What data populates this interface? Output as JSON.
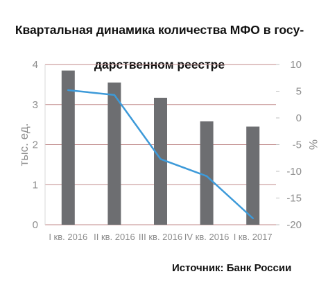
{
  "chart_data": {
    "type": "bar+line",
    "title": "Квартальная динамика количества МФО в государственном реестре",
    "title_lines": [
      "Квартальная динамика количества МФО в госу-",
      "дарственном реестре"
    ],
    "categories": [
      "I кв. 2016",
      "II кв. 2016",
      "III кв. 2016",
      "IV кв. 2016",
      "I кв. 2017"
    ],
    "bars": {
      "axis": "left",
      "values": [
        3.85,
        3.55,
        3.17,
        2.58,
        2.45
      ],
      "color": "#6d6e71"
    },
    "line": {
      "axis": "right",
      "values": [
        5.2,
        4.3,
        -7.7,
        -10.9,
        -18.8
      ],
      "color": "#3d9ad9"
    },
    "ylabel_left": "тыс. ед.",
    "ylabel_right": "%",
    "ylim_left": [
      0,
      4
    ],
    "ylim_right": [
      -20,
      10
    ],
    "yticks_left": [
      "0",
      "1",
      "2",
      "3",
      "4"
    ],
    "yticks_right": [
      "-20",
      "-15",
      "-10",
      "-5",
      "0",
      "5",
      "10"
    ],
    "grid": true,
    "gridline_color": "#c08a8a"
  },
  "source": "Источник: Банк России"
}
